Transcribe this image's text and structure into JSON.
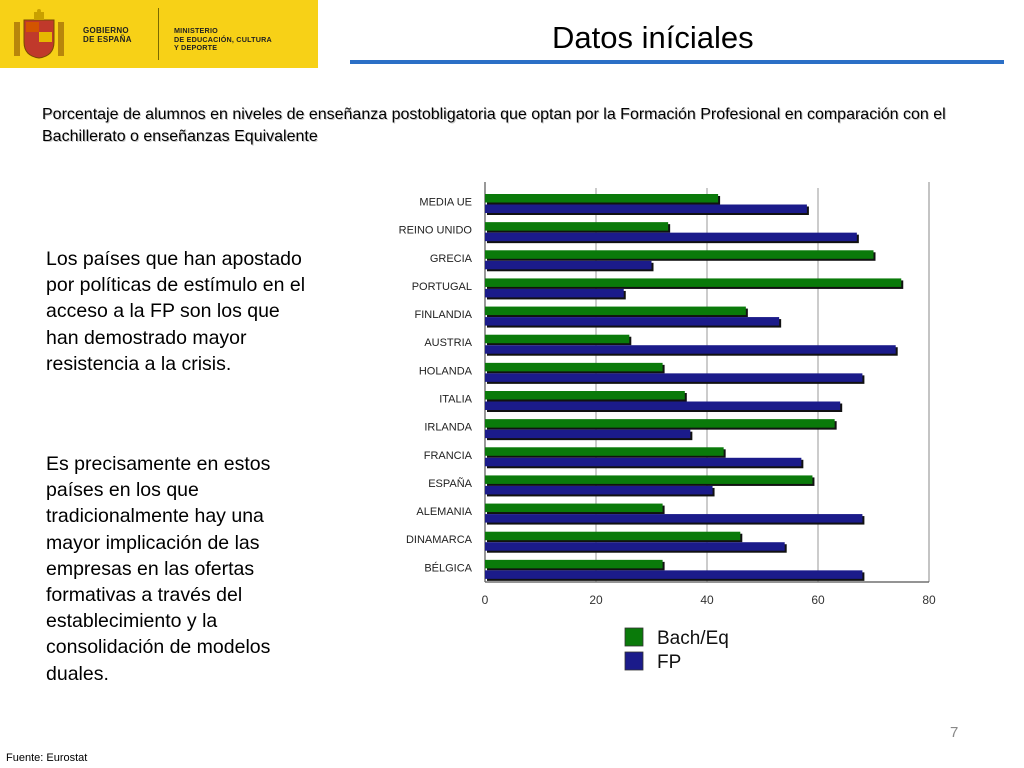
{
  "header": {
    "logo_gov": [
      "GOBIERNO",
      "DE ESPAÑA"
    ],
    "logo_ministry": [
      "MINISTERIO",
      "DE EDUCACIÓN, CULTURA",
      "Y DEPORTE"
    ],
    "title": "Datos iníciales",
    "accent_color": "#2b6fc6",
    "logo_bg": "#f7d117"
  },
  "subtitle": "Porcentaje de alumnos en niveles de enseñanza postobligatoria que optan por la Formación Profesional en comparación con el Bachillerato o enseñanzas Equivalente",
  "body": {
    "paragraph1": "Los  países que han apostado por políticas de estímulo en el acceso a la FP son los que han demostrado mayor resistencia a la crisis.",
    "paragraph2": "Es precisamente en estos países en los que tradicionalmente hay una mayor implicación de las empresas en las ofertas formativas a través del establecimiento y la consolidación de modelos duales."
  },
  "chart_data": {
    "type": "bar",
    "orientation": "horizontal",
    "title": "",
    "xlabel": "",
    "ylabel": "",
    "xlim": [
      0,
      80
    ],
    "x_ticks": [
      0,
      20,
      40,
      60,
      80
    ],
    "grid": true,
    "legend_position": "bottom",
    "categories": [
      "MEDIA UE",
      "REINO UNIDO",
      "GRECIA",
      "PORTUGAL",
      "FINLANDIA",
      "AUSTRIA",
      "HOLANDA",
      "ITALIA",
      "IRLANDA",
      "FRANCIA",
      "ESPAÑA",
      "ALEMANIA",
      "DINAMARCA",
      "BÉLGICA"
    ],
    "series": [
      {
        "name": "Bach/Eq",
        "color": "#0a7a0a",
        "values": [
          42,
          33,
          70,
          75,
          47,
          26,
          32,
          36,
          63,
          43,
          59,
          32,
          46,
          32
        ]
      },
      {
        "name": "FP",
        "color": "#1b1b8a",
        "values": [
          58,
          67,
          30,
          25,
          53,
          74,
          68,
          64,
          37,
          57,
          41,
          68,
          54,
          68
        ]
      }
    ]
  },
  "footer": {
    "page_number": "7",
    "source": "Fuente: Eurostat"
  }
}
